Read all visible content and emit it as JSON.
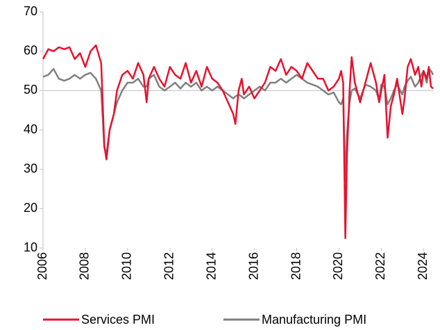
{
  "chart_data": {
    "type": "line",
    "x": [
      2006.0,
      2006.25,
      2006.5,
      2006.75,
      2007.0,
      2007.25,
      2007.5,
      2007.75,
      2008.0,
      2008.25,
      2008.5,
      2008.75,
      2008.9,
      2009.0,
      2009.15,
      2009.35,
      2009.5,
      2009.75,
      2010.0,
      2010.25,
      2010.5,
      2010.75,
      2010.9,
      2011.0,
      2011.25,
      2011.5,
      2011.75,
      2012.0,
      2012.25,
      2012.5,
      2012.75,
      2013.0,
      2013.25,
      2013.5,
      2013.75,
      2014.0,
      2014.25,
      2014.5,
      2014.75,
      2015.0,
      2015.1,
      2015.25,
      2015.4,
      2015.5,
      2015.75,
      2016.0,
      2016.25,
      2016.5,
      2016.75,
      2017.0,
      2017.25,
      2017.5,
      2017.75,
      2018.0,
      2018.25,
      2018.5,
      2018.75,
      2019.0,
      2019.25,
      2019.5,
      2019.75,
      2020.0,
      2020.1,
      2020.2,
      2020.3,
      2020.38,
      2020.5,
      2020.6,
      2020.75,
      2021.0,
      2021.25,
      2021.5,
      2021.75,
      2021.9,
      2022.0,
      2022.15,
      2022.3,
      2022.45,
      2022.6,
      2022.75,
      2023.0,
      2023.1,
      2023.25,
      2023.4,
      2023.6,
      2023.75,
      2023.9,
      2024.0,
      2024.15,
      2024.25,
      2024.35,
      2024.45
    ],
    "series": [
      {
        "name": "Services PMI",
        "color": "#e8112d",
        "values": [
          58,
          60.5,
          60,
          61,
          60.5,
          61,
          58,
          59.5,
          56,
          60,
          61.5,
          57,
          36,
          32.5,
          40,
          44,
          50,
          54,
          55,
          53,
          57,
          54,
          47,
          53,
          56,
          53,
          51,
          56,
          54,
          53,
          57,
          52,
          55,
          51,
          56,
          53,
          52,
          50,
          47,
          44,
          41.5,
          50,
          53,
          49,
          51,
          48,
          50,
          52,
          56,
          55,
          58,
          54,
          56,
          55,
          53,
          57,
          55,
          53,
          53,
          50,
          51,
          53,
          55,
          52,
          12.5,
          34,
          50,
          58.5,
          52,
          47,
          52,
          57,
          52,
          47,
          50,
          54,
          38,
          46,
          49,
          53,
          44,
          48,
          56,
          58,
          54,
          56,
          51,
          55,
          53,
          56,
          51,
          50.5
        ]
      },
      {
        "name": "Manufacturing PMI",
        "color": "#7f7f7f",
        "values": [
          53.5,
          54,
          55.5,
          53,
          52.5,
          53,
          54,
          53,
          54,
          54.5,
          53,
          50,
          35.5,
          34,
          40,
          44,
          47,
          50,
          52,
          52,
          53,
          51,
          51,
          53,
          54,
          51,
          50,
          51,
          52,
          50.5,
          52,
          51,
          52,
          50,
          51,
          50,
          51,
          50,
          49,
          48,
          48.5,
          49,
          48.5,
          48,
          49,
          50,
          51,
          50,
          52,
          52,
          53,
          52,
          53,
          54,
          53,
          52,
          51.5,
          51,
          50,
          49,
          49.5,
          47,
          46.5,
          48,
          27,
          39,
          47,
          50,
          50.5,
          48,
          51.5,
          51,
          50,
          47.5,
          51.5,
          51,
          46.5,
          48,
          50,
          51.5,
          49,
          51,
          52.5,
          53.5,
          51,
          52,
          54,
          55,
          52,
          55.5,
          55,
          54
        ]
      }
    ],
    "xlim": [
      2006,
      2024.45
    ],
    "xticks": [
      2006,
      2008,
      2010,
      2012,
      2014,
      2016,
      2018,
      2020,
      2022,
      2024
    ],
    "ylim": [
      10,
      70
    ],
    "yticks": [
      10,
      20,
      30,
      40,
      50,
      60,
      70
    ],
    "axis_cross_y": 50,
    "legend": "bottom"
  }
}
